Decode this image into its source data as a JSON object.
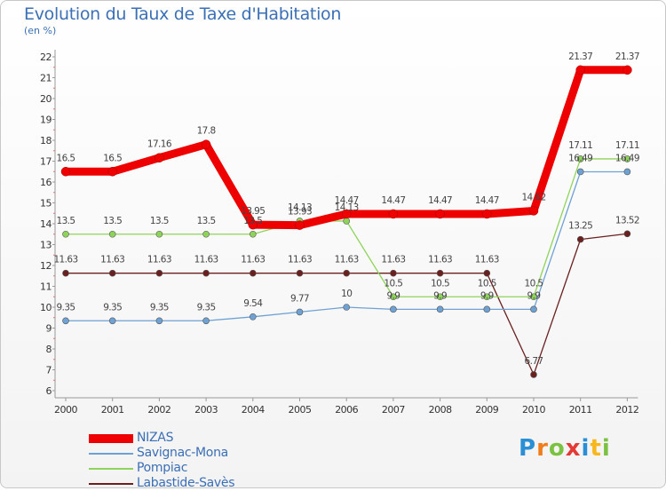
{
  "header": {
    "title": "Evolution du Taux de Taxe d'Habitation",
    "subtitle": "(en %)"
  },
  "logo": {
    "text": "Proxiti",
    "colors": [
      "#2a8fd4",
      "#f07d1a",
      "#7cc242",
      "#e53935",
      "#2a8fd4",
      "#f7b71d",
      "#7cc242"
    ]
  },
  "chart_data": {
    "type": "line",
    "title": "Evolution du Taux de Taxe d'Habitation",
    "ylabel": "(en %)",
    "xlabel": "",
    "x": [
      "2000",
      "2001",
      "2002",
      "2003",
      "2004",
      "2005",
      "2006",
      "2007",
      "2008",
      "2009",
      "2010",
      "2011",
      "2012"
    ],
    "ylim": [
      6,
      22
    ],
    "yticks": [
      "6",
      "7",
      "8",
      "9",
      "10",
      "11",
      "12",
      "13",
      "14",
      "15",
      "16",
      "17",
      "18",
      "19",
      "20",
      "21",
      "22"
    ],
    "grid": false,
    "legend": "bottom-left",
    "series": [
      {
        "name": "NIZAS",
        "color": "#ee0000",
        "values": [
          16.5,
          16.5,
          17.16,
          17.8,
          13.95,
          13.93,
          14.47,
          14.47,
          14.47,
          14.47,
          14.62,
          21.37,
          21.37
        ],
        "labels": [
          "16.5",
          "16.5",
          "17.16",
          "17.8",
          "13.95",
          "13.93",
          "14.47",
          "14.47",
          "14.47",
          "14.47",
          "14.62",
          "21.37",
          "21.37"
        ]
      },
      {
        "name": "Savignac-Mona",
        "color": "#6fa2d4",
        "values": [
          9.35,
          9.35,
          9.35,
          9.35,
          9.54,
          9.77,
          10,
          9.9,
          9.9,
          9.9,
          9.9,
          16.49,
          16.49
        ],
        "labels": [
          "9.35",
          "9.35",
          "9.35",
          "9.35",
          "9.54",
          "9.77",
          "10",
          "9.9",
          "9.9",
          "9.9",
          "9.9",
          "16.49",
          "16.49"
        ]
      },
      {
        "name": "Pompiac",
        "color": "#8ed45a",
        "values": [
          13.5,
          13.5,
          13.5,
          13.5,
          13.5,
          14.13,
          14.13,
          10.5,
          10.5,
          10.5,
          10.5,
          17.11,
          17.11
        ],
        "labels": [
          "13.5",
          "13.5",
          "13.5",
          "13.5",
          "13.5",
          "14.13",
          "14.13",
          "10.5",
          "10.5",
          "10.5",
          "10.5",
          "17.11",
          "17.11"
        ]
      },
      {
        "name": "Labastide-Savès",
        "color": "#6b2020",
        "values": [
          11.63,
          11.63,
          11.63,
          11.63,
          11.63,
          11.63,
          11.63,
          11.63,
          11.63,
          11.63,
          6.77,
          13.25,
          13.52
        ],
        "labels": [
          "11.63",
          "11.63",
          "11.63",
          "11.63",
          "11.63",
          "11.63",
          "11.63",
          "11.63",
          "11.63",
          "11.63",
          "6.77",
          "13.25",
          "13.52"
        ]
      }
    ]
  }
}
